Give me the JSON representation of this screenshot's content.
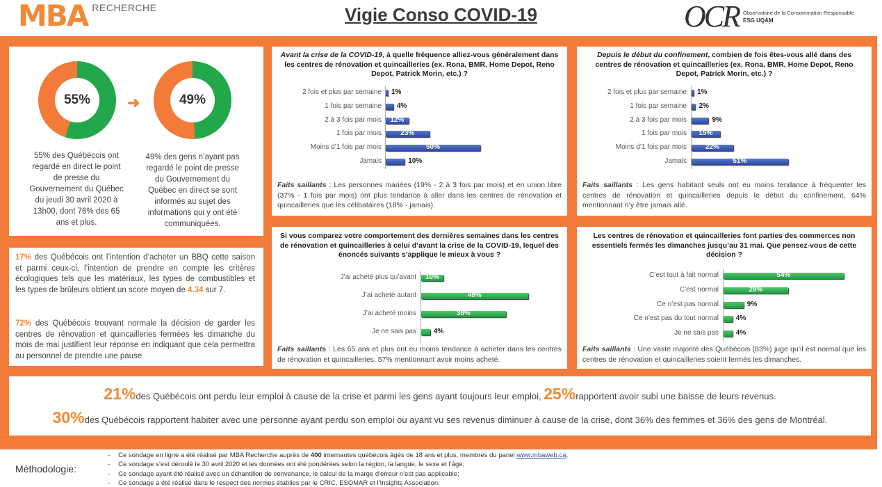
{
  "header": {
    "logo": "MBA",
    "logo_sub": "RECHERCHE",
    "title": "Vigie Conso COVID-19",
    "ocr_logo": "OCR",
    "ocr_line1": "Observatoire de la Consommation Responsable",
    "ocr_line2": "ESG UQÀM"
  },
  "colors": {
    "orange": "#f27b3a",
    "green": "#22a84a",
    "blue": "#3253b3"
  },
  "donuts": [
    {
      "value": "55%",
      "pct": 55,
      "text": "55% des Québécois ont regardé en direct le point de presse du Gouvernement du Québec du jeudi 30 avril 2020 à 13h00, dont 76% des 65 ans et plus."
    },
    {
      "value": "49%",
      "pct": 49,
      "text": "49% des gens n’ayant pas regardé le point de presse du Gouvernement du Québec en direct se sont informés au sujet des informations qui y ont été communiquées."
    }
  ],
  "bbq": {
    "p1_pct": "17%",
    "p1_a": " des Québécois ont l’intention d’acheter un BBQ cette saison et parmi ceux-ci, l’intention de prendre en compte les critères écologiques tels que les matériaux, les types de combustibles et les types de brûleurs obtient un score moyen de ",
    "p1_score": "4.34",
    "p1_b": " sur 7.",
    "p2_pct": "72%",
    "p2_a": " des Québécois trouvant normale la décision de garder les centres de rénovation et quincailleries fermées les dimanche du mois de mai justifient leur réponse en indiquant que cela permettra au personnel de prendre une pause"
  },
  "chart_data": [
    {
      "type": "bar",
      "orientation": "horizontal",
      "title_em": "Avant la crise de la COVID-19",
      "title": ", à quelle fréquence alliez-vous généralement dans les centres de rénovation et quincailleries (ex. Rona, BMR, Home Depot, Reno Depot, Patrick Morin, etc.) ?",
      "categories": [
        "2 fois et plus par semaine",
        "1 fois par semaine",
        "2 à 3 fois par mois",
        "1 fois par mois",
        "Moins d’1 fois par mois",
        "Jamais"
      ],
      "values": [
        1,
        4,
        12,
        23,
        50,
        10
      ],
      "labels": [
        "1%",
        "4%",
        "12%",
        "23%",
        "50%",
        "10%"
      ],
      "faits": "Les personnes mariées (19% - 2 à 3 fois par mois) et en union libre (37% - 1 fois par mois) ont plus tendance à aller dans les centres de rénovation et quincailleries que les célibataires (18% - jamais)."
    },
    {
      "type": "bar",
      "orientation": "horizontal",
      "title_em": "Depuis le début du confinement",
      "title": ", combien de fois êtes-vous allé dans des centres de rénovation et quincailleries (ex. Rona, BMR, Home Depot, Reno Depot, Patrick Morin, etc.) ?",
      "categories": [
        "2 fois et plus par semaine",
        "1 fois par semaine",
        "2 à 3 fois par mois",
        "1 fois par mois",
        "Moins d’1 fois par mois",
        "Jamais"
      ],
      "values": [
        1,
        2,
        9,
        15,
        22,
        51
      ],
      "labels": [
        "1%",
        "2%",
        "9%",
        "15%",
        "22%",
        "51%"
      ],
      "faits": "Les gens habitant seuls ont eu moins tendance à fréquenter les centres de rénovation et quincailleries depuis le début du confinement, 64% mentionnant n’y être jamais allé."
    },
    {
      "type": "bar",
      "orientation": "horizontal",
      "title": "Si vous comparez votre comportement des dernières semaines dans les centres de rénovation et quincailleries à celui d’avant la crise de la COVID-19, lequel des énoncés suivants s’applique le mieux à vous ?",
      "categories": [
        "J’ai acheté plus qu’avant",
        "J’ai acheté autant",
        "J’ai acheté moins",
        "Je ne sais pas"
      ],
      "values": [
        10,
        48,
        38,
        4
      ],
      "labels": [
        "10%",
        "48%",
        "38%",
        "4%"
      ],
      "faits": "Les 65 ans et plus ont eu moins tendance à acheter dans les centres de rénovation et quincailleries, 57% mentionnant avoir moins acheté."
    },
    {
      "type": "bar",
      "orientation": "horizontal",
      "title": "Les centres de rénovation et quincailleries font parties des commerces non essentiels fermés les dimanches jusqu’au 31 mai. Que pensez-vous de cette décision ?",
      "categories": [
        "C’est tout à fait normal",
        "C’est normal",
        "Ce n’est pas normal",
        "Ce n’est pas du tout normal",
        "Je ne sais pas"
      ],
      "values": [
        54,
        29,
        9,
        4,
        4
      ],
      "labels": [
        "54%",
        "29%",
        "9%",
        "4%",
        "4%"
      ],
      "faits": "Une vaste majorité des Québécois (83%) juge qu’il est normal que les centres de rénovation et quincailleries soient fermés les dimanches."
    }
  ],
  "faits_label": "Faits saillants",
  "stats": {
    "s1_pct": "21%",
    "s1_a": "des Québécois ont perdu leur emploi à cause de la crise et parmi les gens ayant toujours leur emploi, ",
    "s1_pct2": "25%",
    "s1_b": "rapportent avoir subi une baisse de leurs revenus.",
    "s2_pct": "30%",
    "s2_a": "des Québécois rapportent habiter avec une personne ayant perdu son emploi ou ayant vu ses revenus diminuer à cause de la crise, dont 36% des femmes et 36% des gens de Montréal."
  },
  "methodology": {
    "label": "Méthodologie:",
    "n1_a": "Ce sondage en ligne a été réalisé par MBA Recherche auprès de ",
    "n1_bold": "400",
    "n1_b": " internautes québécois âgés de 18 ans et plus, membres du panel ",
    "n1_link": "www.mbaweb.ca",
    "n1_c": ";",
    "n2": "Ce sondage s’est déroulé le 30 avril 2020 et les données ont été pondérées selon la région, la langue, le sexe et l’âge;",
    "n3": "Ce sondage ayant été réalisé avec un échantillon de convenance, le calcul de la marge d'erreur n'est pas applicable;",
    "n4": "Ce sondage a été réalisé dans le respect des normes établies par le CRIC, ESOMAR et l’Insights Association;"
  }
}
